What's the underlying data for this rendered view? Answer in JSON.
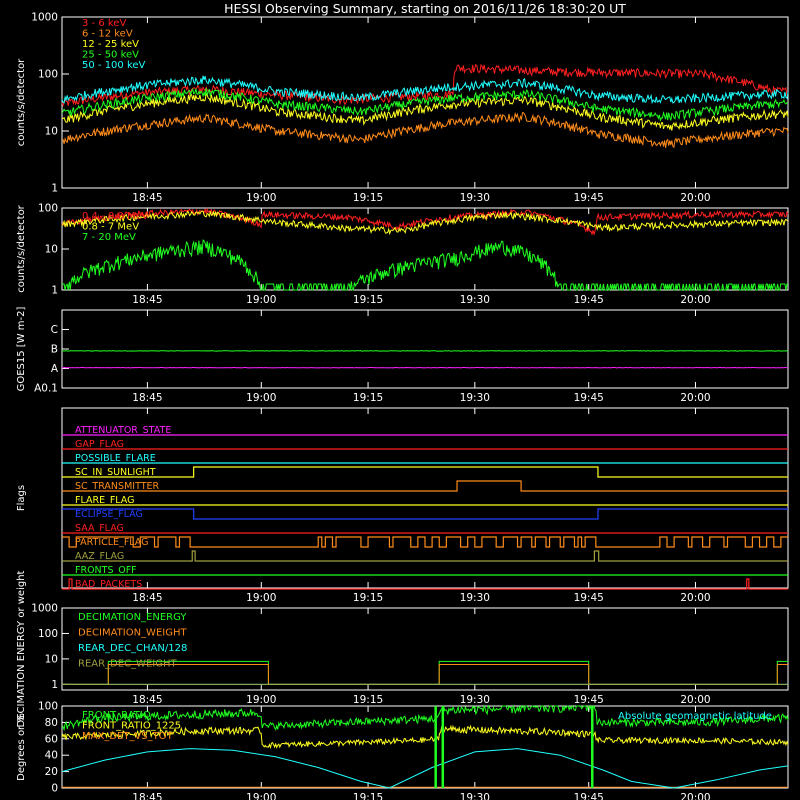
{
  "title": "HESSI Observing Summary, starting on 2016/11/26 18:30:20 UT",
  "colors": {
    "background": "#000000",
    "axes": "#ffffff",
    "red": "#ff2020",
    "orange": "#ff8c1a",
    "yellow": "#ffff20",
    "green": "#20ff20",
    "cyan": "#20ffff",
    "magenta": "#ff20ff",
    "blue": "#2040ff",
    "olive": "#a0a040",
    "lightgreen": "#70ff70"
  },
  "time_axis": {
    "start_minutes": 0,
    "end_minutes": 102,
    "ticks": [
      {
        "t": 12.0,
        "label": "18:45"
      },
      {
        "t": 28.0,
        "label": "19:00"
      },
      {
        "t": 43.0,
        "label": "19:15"
      },
      {
        "t": 58.0,
        "label": "19:30"
      },
      {
        "t": 74.0,
        "label": "19:45"
      },
      {
        "t": 89.0,
        "label": "20:00"
      }
    ]
  },
  "chart_data": [
    {
      "type": "line",
      "name": "panel1",
      "ylabel": "counts/s/detector",
      "yscale": "log",
      "ylim": [
        1,
        1000
      ],
      "ytick_labels": [
        "1",
        "10",
        "100",
        "1000"
      ],
      "ytick_values": [
        1,
        10,
        100,
        1000
      ],
      "legend": [
        "3 - 6 keV",
        "6 - 12 keV",
        "12 - 25 keV",
        "25 - 50 keV",
        "50 - 100 keV"
      ],
      "series": [
        {
          "name": "3 - 6 keV",
          "color": "red",
          "x": [
            0,
            10,
            20,
            28,
            40,
            55,
            55.1,
            70,
            90,
            100
          ],
          "y": [
            30,
            45,
            55,
            45,
            35,
            45,
            130,
            110,
            100,
            50
          ]
        },
        {
          "name": "6 - 12 keV",
          "color": "orange",
          "x": [
            0,
            10,
            20,
            30,
            42,
            55,
            65,
            75,
            85,
            100
          ],
          "y": [
            7,
            12,
            17,
            10,
            7,
            14,
            18,
            9,
            6,
            10
          ]
        },
        {
          "name": "12 - 25 keV",
          "color": "yellow",
          "x": [
            0,
            10,
            20,
            30,
            42,
            55,
            65,
            75,
            85,
            100
          ],
          "y": [
            15,
            28,
            40,
            22,
            15,
            30,
            35,
            18,
            12,
            20
          ]
        },
        {
          "name": "25 - 50 keV",
          "color": "green",
          "x": [
            0,
            10,
            20,
            30,
            42,
            55,
            65,
            75,
            85,
            100
          ],
          "y": [
            20,
            35,
            50,
            30,
            22,
            38,
            45,
            25,
            18,
            30
          ]
        },
        {
          "name": "50 - 100 keV",
          "color": "cyan",
          "x": [
            0,
            10,
            20,
            30,
            42,
            55,
            65,
            75,
            85,
            100
          ],
          "y": [
            35,
            60,
            80,
            50,
            38,
            60,
            70,
            42,
            35,
            45
          ]
        }
      ]
    },
    {
      "type": "line",
      "name": "panel2",
      "ylabel": "counts/s/detector",
      "yscale": "log",
      "ylim": [
        1,
        100
      ],
      "ytick_labels": [
        "1",
        "10",
        "100"
      ],
      "ytick_values": [
        1,
        10,
        100
      ],
      "legend": [
        "0.4 - 0.8 MeV",
        "0.8 - 7 MeV",
        "7 - 20 MeV"
      ],
      "series": [
        {
          "name": "0.4 - 0.8 MeV",
          "color": "red",
          "x": [
            0,
            10,
            20,
            28,
            28.1,
            40,
            47,
            55,
            65,
            75,
            75.1,
            90,
            100
          ],
          "y": [
            40,
            70,
            85,
            40,
            70,
            60,
            35,
            60,
            80,
            25,
            60,
            70,
            70
          ]
        },
        {
          "name": "0.8 - 7 MeV",
          "color": "yellow",
          "x": [
            0,
            10,
            20,
            30,
            40,
            48,
            55,
            62,
            70,
            76,
            88,
            100
          ],
          "y": [
            40,
            60,
            75,
            45,
            32,
            28,
            50,
            70,
            50,
            33,
            40,
            45
          ]
        },
        {
          "name": "7 - 20 MeV",
          "color": "green",
          "x": [
            0,
            10,
            20,
            28,
            40,
            55,
            62,
            70,
            100
          ],
          "y": [
            1,
            6,
            12,
            1,
            1,
            6,
            12,
            1,
            1
          ]
        }
      ]
    },
    {
      "type": "line",
      "name": "panel3",
      "ylabel": "GOES15 [W m-2]",
      "yscale": "log",
      "ylim": [
        0.1,
        1000
      ],
      "ytick_labels": [
        "A0.1",
        "A",
        "B",
        "C"
      ],
      "ytick_values": [
        0.1,
        1,
        10,
        100
      ],
      "series": [
        {
          "name": "goes-long",
          "color": "green",
          "x": [
            0,
            100
          ],
          "y": [
            8,
            8
          ]
        },
        {
          "name": "goes-short",
          "color": "magenta",
          "x": [
            0,
            100
          ],
          "y": [
            1.1,
            1.1
          ]
        }
      ]
    },
    {
      "type": "line",
      "name": "flags",
      "ylabel": "Flags",
      "flags": [
        {
          "label": "ATTENUATOR_STATE",
          "color": "magenta",
          "steps": []
        },
        {
          "label": "GAP_FLAG",
          "color": "red",
          "steps": []
        },
        {
          "label": "POSSIBLE_FLARE",
          "color": "cyan",
          "steps": []
        },
        {
          "label": "SC_IN_SUNLIGHT",
          "color": "yellow",
          "steps": [
            [
              0,
              0
            ],
            [
              18.5,
              1
            ],
            [
              75.3,
              0
            ]
          ]
        },
        {
          "label": "SC_TRANSMITTER",
          "color": "orange",
          "steps": [
            [
              0,
              0
            ],
            [
              55.5,
              1
            ],
            [
              64.5,
              0
            ]
          ]
        },
        {
          "label": "FLARE_FLAG",
          "color": "yellow",
          "steps": []
        },
        {
          "label": "ECLIPSE_FLAG",
          "color": "blue",
          "steps": [
            [
              0,
              1
            ],
            [
              18.5,
              0
            ],
            [
              75.3,
              1
            ]
          ]
        },
        {
          "label": "SAA_FLAG",
          "color": "red",
          "steps": []
        },
        {
          "label": "PARTICLE_FLAG",
          "color": "orange",
          "steps": [
            [
              0,
              1
            ],
            [
              1,
              0
            ],
            [
              2,
              1
            ],
            [
              10,
              0
            ],
            [
              11,
              1
            ],
            [
              13,
              0
            ],
            [
              13.5,
              1
            ],
            [
              16,
              0
            ],
            [
              16.5,
              1
            ],
            [
              18,
              0
            ],
            [
              36,
              1
            ],
            [
              36.5,
              0
            ],
            [
              37,
              1
            ],
            [
              38,
              0
            ],
            [
              38.5,
              1
            ],
            [
              42,
              0
            ],
            [
              43,
              1
            ],
            [
              46,
              0
            ],
            [
              46.5,
              1
            ],
            [
              49,
              0
            ],
            [
              50,
              1
            ],
            [
              51,
              0
            ],
            [
              52,
              1
            ],
            [
              53,
              0
            ],
            [
              54,
              1
            ],
            [
              56,
              0
            ],
            [
              57,
              1
            ],
            [
              58,
              0
            ],
            [
              59,
              1
            ],
            [
              61,
              0
            ],
            [
              62,
              1
            ],
            [
              64,
              0
            ],
            [
              64.5,
              1
            ],
            [
              66,
              0
            ],
            [
              66.5,
              1
            ],
            [
              68,
              0
            ],
            [
              68.5,
              1
            ],
            [
              70,
              0
            ],
            [
              70.5,
              1
            ],
            [
              72,
              0
            ],
            [
              72.5,
              1
            ],
            [
              73,
              0
            ],
            [
              73.5,
              1
            ],
            [
              75,
              0
            ],
            [
              84,
              1
            ],
            [
              85,
              0
            ],
            [
              86,
              1
            ],
            [
              88,
              0
            ],
            [
              88.5,
              1
            ],
            [
              90,
              0
            ],
            [
              91,
              1
            ],
            [
              93,
              0
            ],
            [
              93.5,
              1
            ],
            [
              96,
              0
            ],
            [
              97,
              1
            ],
            [
              98,
              0
            ],
            [
              99,
              1
            ],
            [
              100,
              0
            ],
            [
              101,
              1
            ]
          ]
        },
        {
          "label": "AAZ_FLAG",
          "color": "olive",
          "steps": [
            [
              0,
              0
            ],
            [
              18.3,
              1
            ],
            [
              18.7,
              0
            ],
            [
              74.8,
              1
            ],
            [
              75.4,
              0
            ]
          ]
        },
        {
          "label": "FRONTS_OFF",
          "color": "green",
          "steps": []
        },
        {
          "label": "BAD_PACKETS",
          "color": "red",
          "steps": [
            [
              0,
              0
            ],
            [
              1,
              1
            ],
            [
              1.4,
              0
            ],
            [
              96.2,
              1
            ],
            [
              96.5,
              0
            ]
          ]
        }
      ]
    },
    {
      "type": "line",
      "name": "decimation",
      "ylabel": "DECIMATION ENERGY or weight",
      "yscale": "log",
      "ylim": [
        0.6,
        1000
      ],
      "ytick_labels": [
        "1",
        "10",
        "100",
        "1000"
      ],
      "ytick_values": [
        1,
        10,
        100,
        1000
      ],
      "legend": [
        "DECIMATION_ENERGY",
        "DECIMATION_WEIGHT",
        "REAR_DEC_CHAN/128",
        "REAR_DEC_WEIGHT"
      ],
      "series": [
        {
          "name": "DECIMATION_ENERGY",
          "color": "green",
          "x": [
            0,
            6.5,
            6.5,
            29,
            29,
            53,
            53,
            74,
            74,
            100.5,
            100.5,
            102
          ],
          "y": [
            1,
            1,
            8,
            8,
            1,
            1,
            8,
            8,
            1,
            1,
            8,
            8
          ]
        },
        {
          "name": "DECIMATION_WEIGHT",
          "color": "orange",
          "x": [
            0,
            6.5,
            6.5,
            29,
            29,
            53,
            53,
            74,
            74,
            100.5,
            100.5,
            102
          ],
          "y": [
            1,
            1,
            6,
            6,
            1,
            1,
            6,
            6,
            1,
            1,
            6,
            6
          ]
        },
        {
          "name": "REAR_DEC_CHAN/128",
          "color": "cyan",
          "x": [
            0,
            102
          ],
          "y": [
            1,
            1
          ]
        },
        {
          "name": "REAR_DEC_WEIGHT",
          "color": "olive",
          "x": [
            0,
            102
          ],
          "y": [
            1,
            1
          ]
        }
      ]
    },
    {
      "type": "line",
      "name": "ratios",
      "ylabel": "Degrees or %",
      "ylim": [
        0,
        100
      ],
      "ytick_labels": [
        "0",
        "20",
        "40",
        "60",
        "80",
        "100"
      ],
      "ytick_values": [
        0,
        20,
        40,
        60,
        80,
        100
      ],
      "legend": [
        "FRONT_RATIO",
        "FRONT_RATIO_1225",
        "MAX_DET_VS_TOT"
      ],
      "annotation": "Absolute geomagnetic latitude",
      "series": [
        {
          "name": "FRONT_RATIO",
          "color": "green",
          "x": [
            0,
            5,
            20,
            28,
            28.1,
            40,
            53,
            53.1,
            70,
            75,
            75.1,
            90,
            100
          ],
          "y": [
            75,
            85,
            90,
            92,
            75,
            80,
            85,
            95,
            98,
            100,
            80,
            80,
            85
          ]
        },
        {
          "name": "FRONT_RATIO_1225",
          "color": "yellow",
          "x": [
            0,
            10,
            20,
            28,
            28.1,
            40,
            50,
            53,
            53.1,
            70,
            75,
            75.1,
            90,
            100
          ],
          "y": [
            62,
            66,
            70,
            70,
            52,
            55,
            58,
            60,
            72,
            68,
            65,
            58,
            58,
            56
          ]
        },
        {
          "name": "MAX_DET_VS_TOT",
          "color": "orange",
          "x": [
            0,
            102
          ],
          "y": [
            1,
            1
          ]
        },
        {
          "name": "Absolute geomagnetic latitude",
          "color": "cyan",
          "x": [
            0,
            6,
            12,
            18,
            24,
            30,
            36,
            42,
            46,
            52,
            58,
            64,
            70,
            76,
            80,
            86,
            92,
            98,
            102
          ],
          "y": [
            20,
            34,
            44,
            48,
            46,
            38,
            25,
            8,
            0,
            25,
            44,
            48,
            40,
            22,
            8,
            0,
            10,
            22,
            27
          ]
        }
      ],
      "spikes": [
        {
          "x": 52.5,
          "color": "green"
        },
        {
          "x": 53.5,
          "color": "green"
        },
        {
          "x": 74.5,
          "color": "green"
        }
      ]
    }
  ]
}
